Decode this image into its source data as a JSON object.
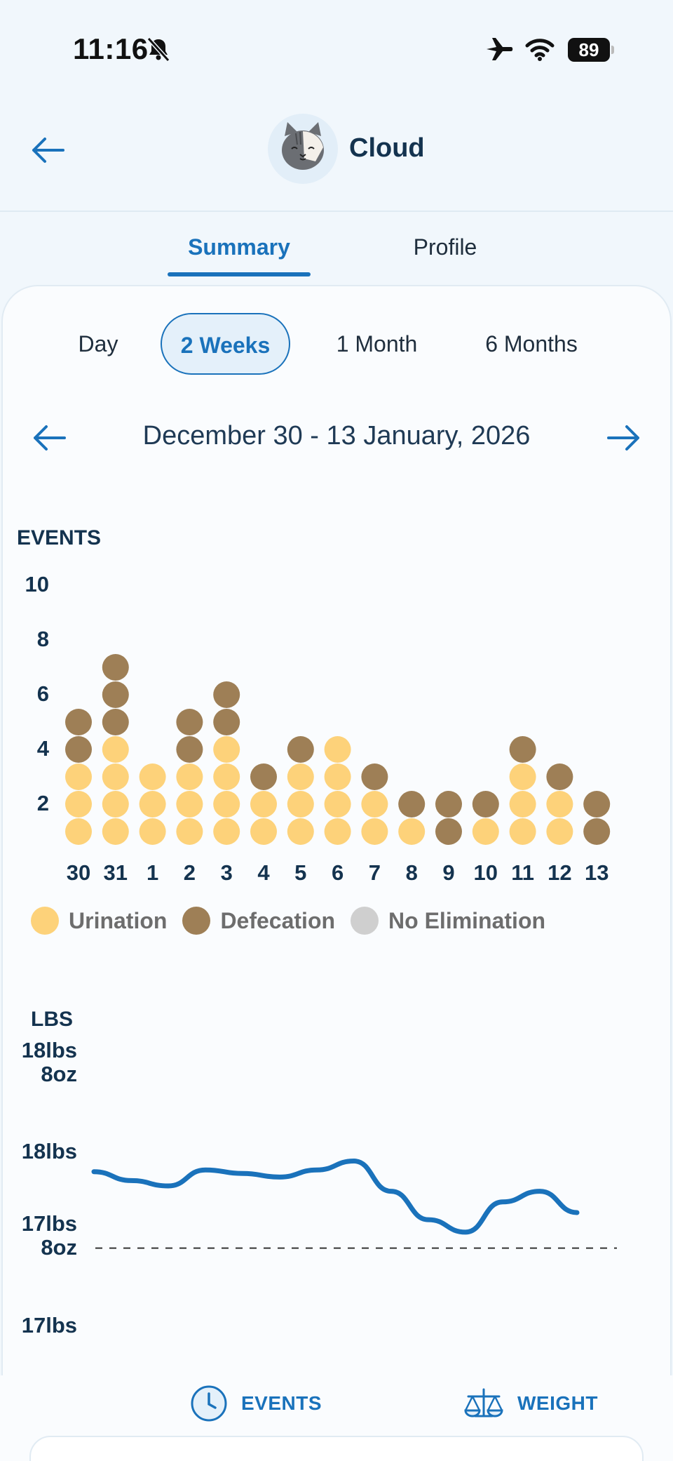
{
  "status_bar": {
    "time": "11:16",
    "battery": "89",
    "icons": [
      "bell-slash-icon",
      "airplane-icon",
      "wifi-icon",
      "battery-icon"
    ]
  },
  "header": {
    "pet_name": "Cloud",
    "back_icon": "arrow-left-icon"
  },
  "tabs": [
    {
      "label": "Summary",
      "active": true
    },
    {
      "label": "Profile",
      "active": false
    }
  ],
  "range": {
    "options": [
      "Day",
      "2 Weeks",
      "1 Month",
      "6 Months"
    ],
    "selected": "2 Weeks"
  },
  "date_nav": {
    "label": "December 30 - 13 January, 2026"
  },
  "colors": {
    "accent": "#1a72bb",
    "urination": "#fdd27a",
    "defecation": "#9e7f56",
    "no_elimination": "#cfcfcf"
  },
  "chart_data": [
    {
      "type": "scatter",
      "title": "EVENTS",
      "ylim": [
        0,
        10
      ],
      "yticks": [
        "10",
        "8",
        "6",
        "4",
        "2"
      ],
      "categories": [
        "30",
        "31",
        "1",
        "2",
        "3",
        "4",
        "5",
        "6",
        "7",
        "8",
        "9",
        "10",
        "11",
        "12",
        "13"
      ],
      "series": [
        {
          "name": "Urination",
          "values": [
            3,
            4,
            3,
            3,
            4,
            2,
            3,
            4,
            2,
            1,
            0,
            1,
            3,
            2,
            0
          ]
        },
        {
          "name": "Defecation",
          "values": [
            2,
            3,
            0,
            2,
            2,
            1,
            1,
            0,
            1,
            1,
            2,
            1,
            1,
            1,
            2
          ]
        }
      ],
      "legend": [
        "Urination",
        "Defecation",
        "No Elimination"
      ]
    },
    {
      "type": "line",
      "ylabel": "LBS",
      "yticks": [
        {
          "line1": "18lbs",
          "line2": "8oz"
        },
        {
          "line1": "18lbs",
          "line2": ""
        },
        {
          "line1": "17lbs",
          "line2": "8oz"
        },
        {
          "line1": "17lbs",
          "line2": ""
        }
      ],
      "ylim": [
        17,
        18.5
      ],
      "reference_line": 17.4,
      "x": [
        "30",
        "31",
        "1",
        "2",
        "3",
        "4",
        "5",
        "6",
        "7",
        "8",
        "9",
        "10",
        "11",
        "12",
        "13"
      ],
      "values": [
        17.83,
        17.78,
        17.75,
        17.84,
        17.82,
        17.8,
        17.84,
        17.89,
        17.72,
        17.56,
        17.49,
        17.66,
        17.72,
        17.6,
        null
      ]
    }
  ],
  "bottom_nav": [
    {
      "label": "EVENTS",
      "icon": "clock-icon"
    },
    {
      "label": "WEIGHT",
      "icon": "scale-icon"
    }
  ]
}
